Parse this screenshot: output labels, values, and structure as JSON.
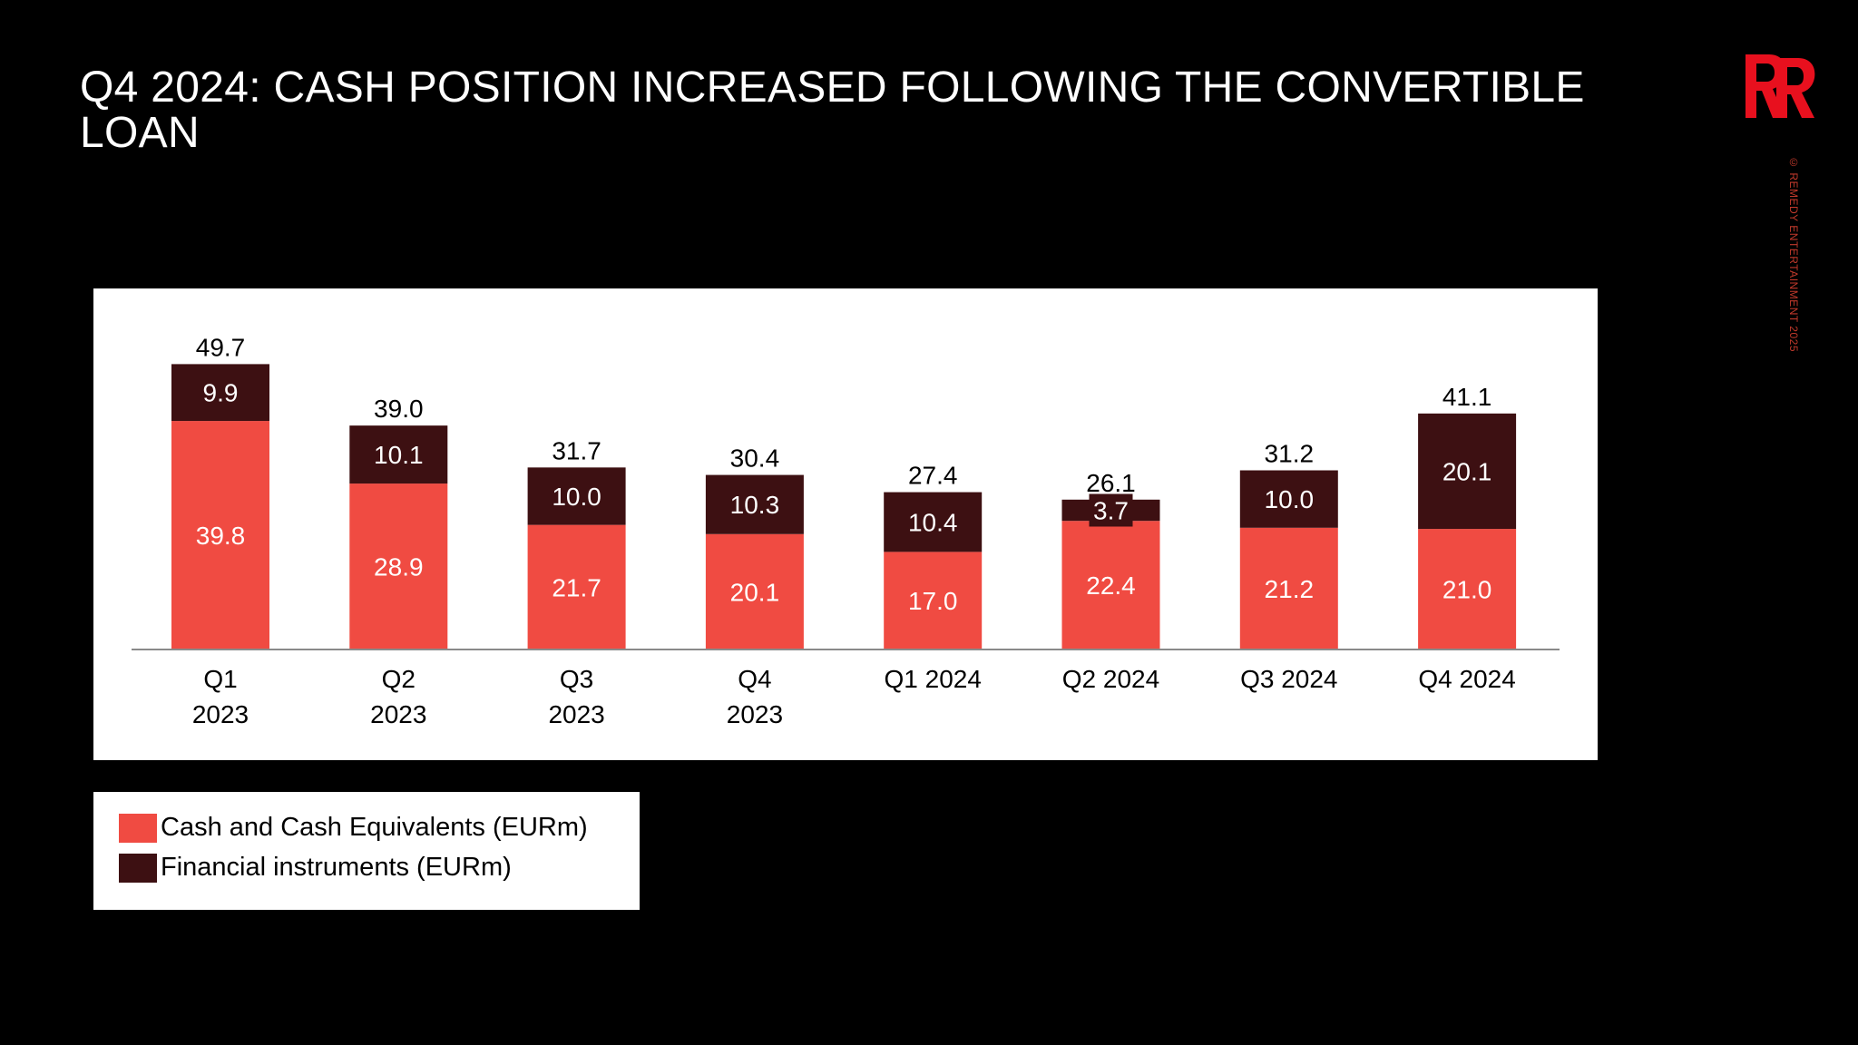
{
  "slide": {
    "title": "Q4 2024: CASH POSITION INCREASED FOLLOWING THE CONVERTIBLE\nLOAN",
    "copyright": "© REMEDY ENTERTAINMENT 2025",
    "logo_icon": "remedy-rr-logo",
    "brand_color": "#e8101e"
  },
  "chart_data": {
    "type": "bar",
    "stacked": true,
    "categories": [
      "Q1\n2023",
      "Q2\n2023",
      "Q3\n2023",
      "Q4\n2023",
      "Q1 2024",
      "Q2 2024",
      "Q3 2024",
      "Q4 2024"
    ],
    "series": [
      {
        "name": "Cash and Cash Equivalents (EURm)",
        "color": "#f04b42",
        "values": [
          39.8,
          28.9,
          21.7,
          20.1,
          17.0,
          22.4,
          21.2,
          21.0
        ],
        "labels": [
          "39.8",
          "28.9",
          "21.7",
          "20.1",
          "17.0",
          "22.4",
          "21.2",
          "21.0"
        ]
      },
      {
        "name": "Financial instruments (EURm)",
        "color": "#3d1012",
        "values": [
          9.9,
          10.1,
          10.0,
          10.3,
          10.4,
          3.7,
          10.0,
          20.1
        ],
        "labels": [
          "9.9",
          "10.1",
          "10.0",
          "10.3",
          "10.4",
          "3.7",
          "10.0",
          "20.1"
        ]
      }
    ],
    "totals": [
      49.7,
      39.0,
      31.7,
      30.4,
      27.4,
      26.1,
      31.2,
      41.1
    ],
    "total_labels": [
      "49.7",
      "39.0",
      "31.7",
      "30.4",
      "27.4",
      "26.1",
      "31.2",
      "41.1"
    ],
    "title": "",
    "xlabel": "",
    "ylabel": "",
    "ylim": [
      0,
      50
    ],
    "grid": false,
    "legend_position": "bottom-left"
  }
}
